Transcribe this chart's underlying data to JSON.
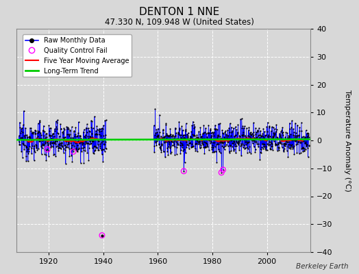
{
  "title": "DENTON 1 NNE",
  "subtitle": "47.330 N, 109.948 W (United States)",
  "ylabel": "Temperature Anomaly (°C)",
  "ylim": [
    -40,
    40
  ],
  "yticks": [
    -40,
    -30,
    -20,
    -10,
    0,
    10,
    20,
    30,
    40
  ],
  "xlim": [
    1908,
    2016
  ],
  "xticks": [
    1920,
    1940,
    1960,
    1980,
    2000
  ],
  "background_color": "#d8d8d8",
  "plot_bg_color": "#d8d8d8",
  "grid_color": "#ffffff",
  "raw_color": "#0000ff",
  "dot_color": "#000000",
  "qc_color": "#ff00ff",
  "mavg_color": "#ff0000",
  "trend_color": "#00cc00",
  "watermark": "Berkeley Earth",
  "legend_entries": [
    "Raw Monthly Data",
    "Quality Control Fail",
    "Five Year Moving Average",
    "Long-Term Trend"
  ],
  "segment1_start": 1909.0,
  "segment1_end": 1941.0,
  "segment2_start": 1958.5,
  "segment2_end": 2015.5,
  "trend_slope": 0.002,
  "trend_intercept": 0.3,
  "amplitude1": 3.2,
  "amplitude2": 2.8,
  "qc_isolated_x": 1939.5,
  "qc_isolated_y": -34.0,
  "qc1_points": [
    [
      1919.5,
      -3.2
    ],
    [
      1929.0,
      -4.0
    ]
  ],
  "qc2_points": [
    [
      1969.5,
      -11.0
    ],
    [
      1983.3,
      -11.5
    ],
    [
      1983.9,
      -10.5
    ]
  ]
}
